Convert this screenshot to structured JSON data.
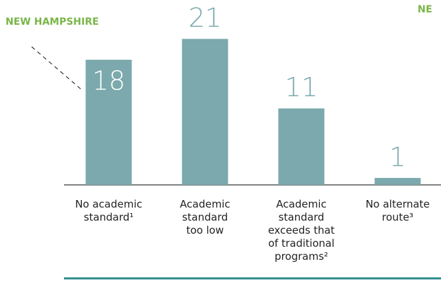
{
  "chart_data": {
    "type": "bar",
    "annotations": [
      "NEW HAMPSHIRE",
      "NE"
    ],
    "categories": [
      "No academic standard¹",
      "Academic standard too low",
      "Academic standard exceeds that of traditional programs²",
      "No alternate route³"
    ],
    "values": [
      18,
      21,
      11,
      1
    ],
    "color": "#7ba9ad",
    "ylim": [
      0,
      26
    ]
  }
}
